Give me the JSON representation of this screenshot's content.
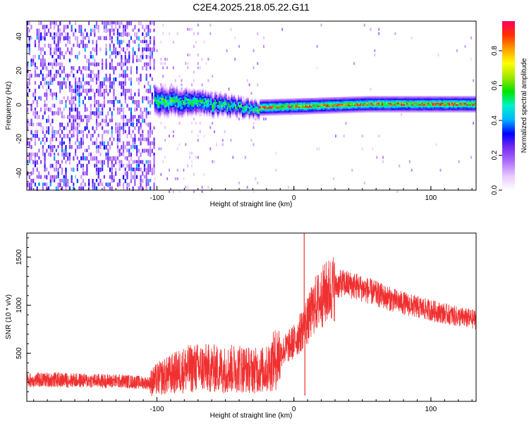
{
  "chart_data": [
    {
      "type": "heatmap",
      "title": "C2E4.2025.218.05.22.G11",
      "xlabel": "Height of straight line (km)",
      "ylabel": "Frequency (Hz)",
      "xlim": [
        -195,
        133
      ],
      "ylim": [
        -50,
        49
      ],
      "xticks": [
        -100,
        0,
        100
      ],
      "yticks": [
        -40,
        -20,
        0,
        20,
        40
      ],
      "colorbar": {
        "label": "Normalized spectral amplitude",
        "range": [
          0.0,
          0.97
        ],
        "ticks": [
          0.0,
          0.2,
          0.4,
          0.6,
          0.8
        ],
        "colors": [
          "#ffffff",
          "#e9c8ff",
          "#b070ff",
          "#7a2df0",
          "#0000ff",
          "#00b4ff",
          "#00f2c8",
          "#00e400",
          "#a0e600",
          "#ffff00",
          "#ffa000",
          "#ff3000",
          "#ff0060"
        ]
      },
      "regions": [
        {
          "name": "noise",
          "x": [
            -195,
            -102
          ],
          "freq_range": [
            -50,
            49
          ],
          "level": 0.25
        },
        {
          "name": "transition",
          "x": [
            -102,
            -25
          ],
          "center_freq": [
            2,
            1,
            -1,
            -3
          ],
          "level": 0.5
        },
        {
          "name": "signal",
          "x": [
            -25,
            133
          ],
          "center_freq": [
            -2,
            -1,
            0,
            0,
            0
          ],
          "level": 0.8
        }
      ]
    },
    {
      "type": "line",
      "title": "",
      "xlabel": "Height of straight line (km)",
      "ylabel": "SNR (10 * v/v)",
      "xlim": [
        -195,
        133
      ],
      "ylim": [
        0,
        1750
      ],
      "xticks": [
        -100,
        0,
        100
      ],
      "yticks": [
        500,
        1000,
        1500
      ],
      "series": [
        {
          "color": "#f03030",
          "x": [
            -195,
            -175,
            -150,
            -125,
            -105,
            -100,
            -90,
            -80,
            -70,
            -60,
            -50,
            -40,
            -30,
            -20,
            -10,
            0,
            5,
            8,
            10,
            15,
            25,
            35,
            45,
            60,
            75,
            90,
            105,
            120,
            133
          ],
          "y": [
            220,
            225,
            215,
            210,
            190,
            230,
            280,
            330,
            350,
            340,
            330,
            350,
            320,
            330,
            500,
            620,
            720,
            820,
            830,
            1000,
            1150,
            1230,
            1200,
            1120,
            1040,
            980,
            930,
            880,
            850
          ]
        }
      ],
      "spikes": [
        {
          "x": 7.5,
          "y": 1750
        },
        {
          "x": 8,
          "y": 60
        }
      ]
    }
  ]
}
